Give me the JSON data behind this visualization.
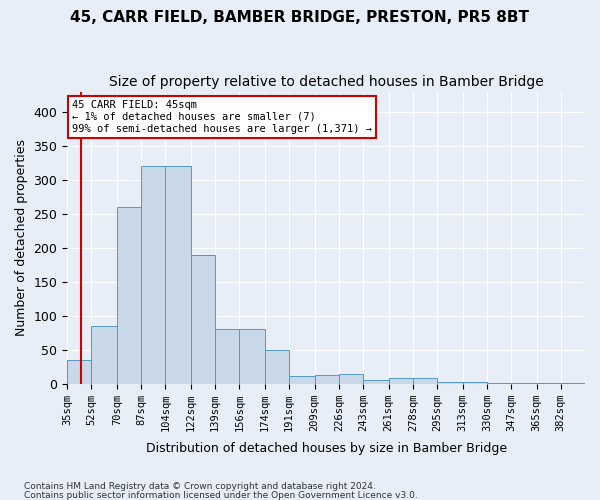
{
  "title": "45, CARR FIELD, BAMBER BRIDGE, PRESTON, PR5 8BT",
  "subtitle": "Size of property relative to detached houses in Bamber Bridge",
  "xlabel": "Distribution of detached houses by size in Bamber Bridge",
  "ylabel": "Number of detached properties",
  "footnote1": "Contains HM Land Registry data © Crown copyright and database right 2024.",
  "footnote2": "Contains public sector information licensed under the Open Government Licence v3.0.",
  "annotation_line1": "45 CARR FIELD: 45sqm",
  "annotation_line2": "← 1% of detached houses are smaller (7)",
  "annotation_line3": "99% of semi-detached houses are larger (1,371) →",
  "bar_edges": [
    35,
    52,
    70,
    87,
    104,
    122,
    139,
    156,
    174,
    191,
    209,
    226,
    243,
    261,
    278,
    295,
    313,
    330,
    347,
    365,
    382,
    399
  ],
  "bar_heights": [
    35,
    85,
    260,
    320,
    320,
    190,
    80,
    80,
    50,
    12,
    13,
    14,
    5,
    9,
    9,
    3,
    2,
    1,
    1,
    1,
    1
  ],
  "bar_color": "#c8d8e8",
  "bar_edge_color": "#5599bb",
  "marker_x": 45,
  "marker_color": "#cc0000",
  "ylim": [
    0,
    430
  ],
  "xlim": [
    35,
    399
  ],
  "background_color": "#e8eef8",
  "plot_background": "#e8eef8",
  "grid_color": "#ffffff",
  "title_fontsize": 11,
  "subtitle_fontsize": 10,
  "tick_label_fontsize": 7.5,
  "yticks": [
    0,
    50,
    100,
    150,
    200,
    250,
    300,
    350,
    400
  ],
  "annotation_box_color": "#ffffff",
  "annotation_box_edge": "#cc0000"
}
